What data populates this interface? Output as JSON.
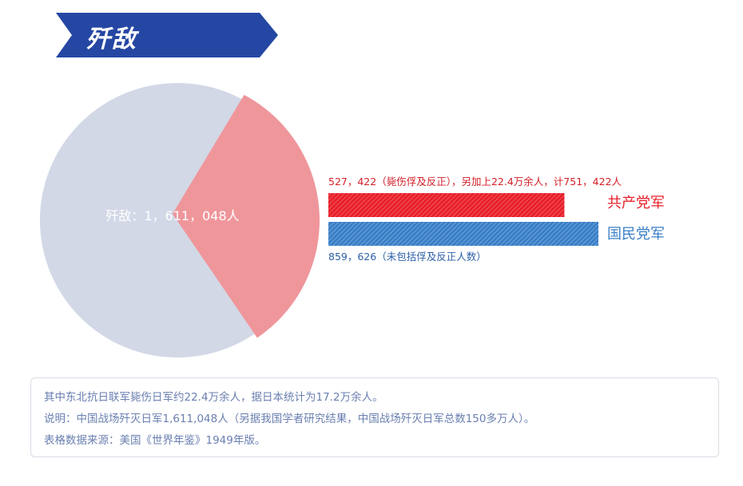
{
  "header": {
    "title": "歼敌"
  },
  "chart_data": {
    "type": "pie",
    "title": "",
    "pie": {
      "label": "歼敌：1，611，048人",
      "total": 1611048,
      "slices": [
        {
          "value": 527422,
          "color": "#ef969b"
        },
        {
          "value": 1083626,
          "color": "#d2d8e6"
        }
      ]
    },
    "bars": [
      {
        "name": "共产党军",
        "value": 751422,
        "color": "#e8202a",
        "annotation": "527，422（毙伤俘及反正），另加上22.4万余人，计751，422人"
      },
      {
        "name": "国民党军",
        "value": 859626,
        "color": "#3a7fc6",
        "annotation": "859，626（未包括俘及反正人数）"
      }
    ]
  },
  "notes": [
    "其中东北抗日联军毙伤日军约22.4万余人，据日本统计为17.2万余人。",
    "说明：中国战场歼灭日军1,611,048人（另据我国学者研究结果，中国战场歼灭日军总数150多万人）。",
    "表格数据来源：美国《世界年鉴》1949年版。"
  ]
}
